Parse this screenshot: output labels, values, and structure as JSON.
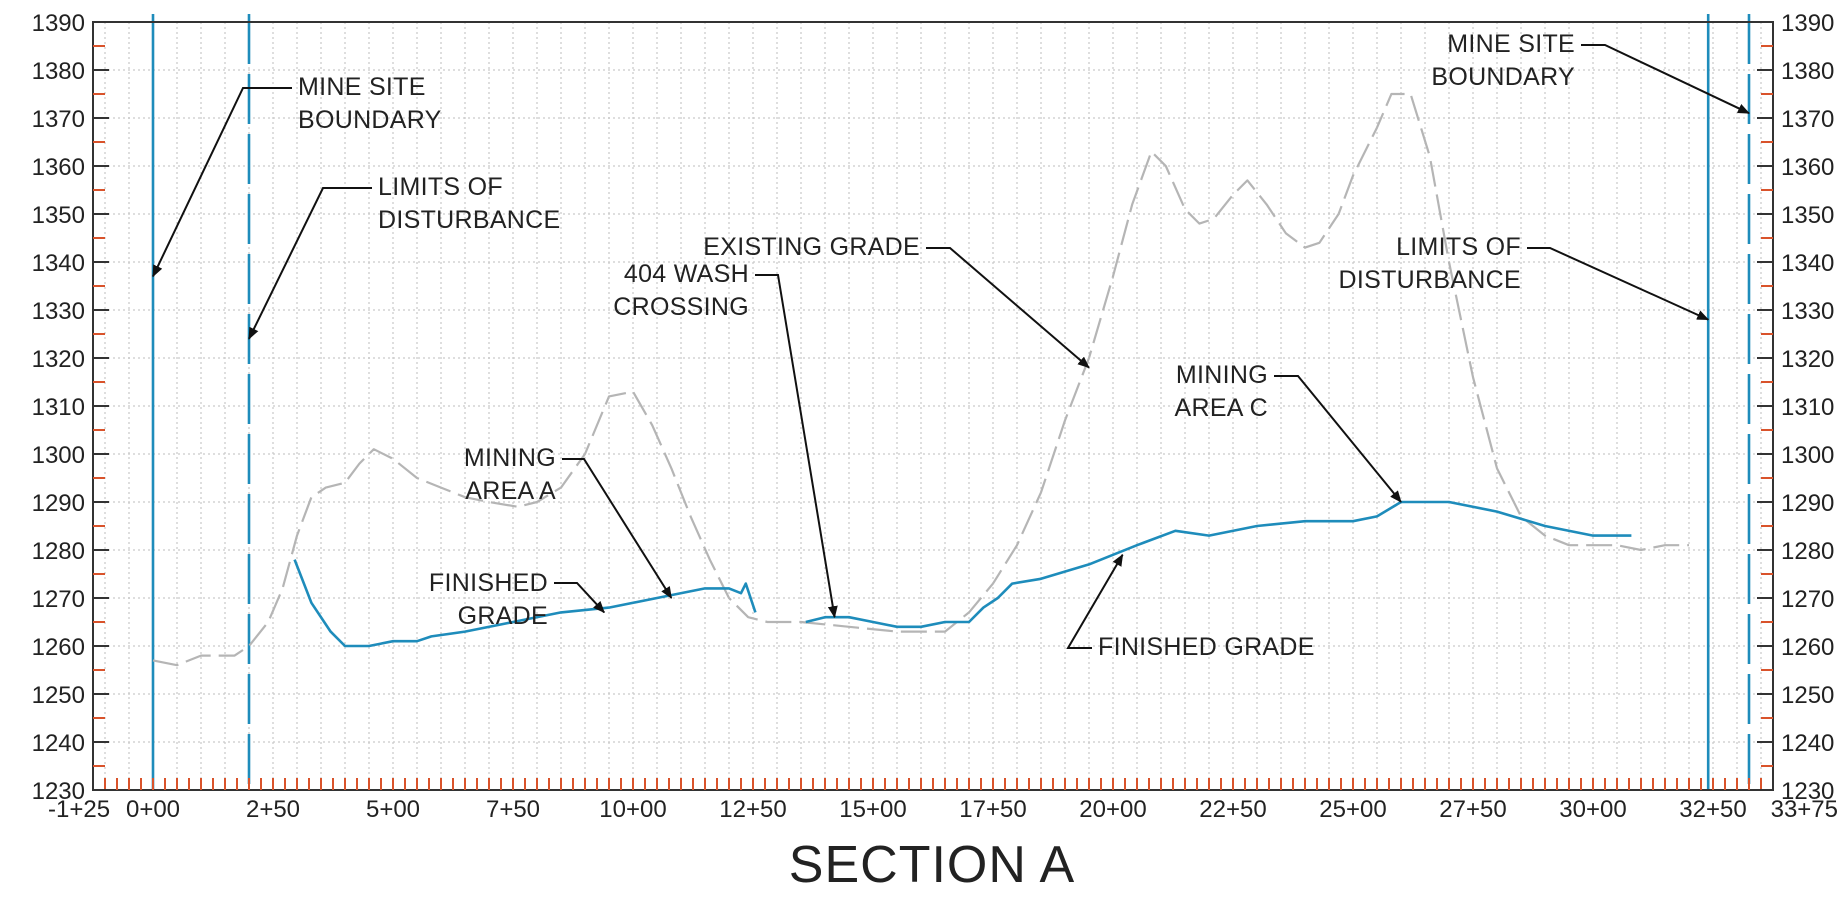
{
  "chart_data": {
    "type": "line",
    "title": "SECTION A",
    "xlabel": "",
    "ylabel": "",
    "xlim": [
      -125,
      3375
    ],
    "ylim": [
      1230,
      1390
    ],
    "grid": true,
    "x_tick_values": [
      -125,
      0,
      250,
      500,
      750,
      1000,
      1250,
      1500,
      1750,
      2000,
      2250,
      2500,
      2750,
      3000,
      3250,
      3375
    ],
    "x_tick_labels": [
      "-1+25",
      "0+00",
      "2+50",
      "5+00",
      "7+50",
      "10+00",
      "12+50",
      "15+00",
      "17+50",
      "20+00",
      "22+50",
      "25+00",
      "27+50",
      "30+00",
      "32+50",
      "33+75"
    ],
    "y_ticks": [
      1230,
      1240,
      1250,
      1260,
      1270,
      1280,
      1290,
      1300,
      1310,
      1320,
      1330,
      1340,
      1350,
      1360,
      1370,
      1380,
      1390
    ],
    "series": [
      {
        "name": "EXISTING GRADE",
        "color": "#b5b5b5",
        "style": "dashed",
        "points": [
          [
            0,
            1257
          ],
          [
            50,
            1256
          ],
          [
            100,
            1258
          ],
          [
            170,
            1258
          ],
          [
            200,
            1260
          ],
          [
            240,
            1265
          ],
          [
            270,
            1272
          ],
          [
            300,
            1283
          ],
          [
            330,
            1291
          ],
          [
            360,
            1293
          ],
          [
            400,
            1294
          ],
          [
            430,
            1298
          ],
          [
            460,
            1301
          ],
          [
            500,
            1299
          ],
          [
            550,
            1295
          ],
          [
            600,
            1293
          ],
          [
            650,
            1291
          ],
          [
            700,
            1290
          ],
          [
            760,
            1289
          ],
          [
            800,
            1290
          ],
          [
            850,
            1293
          ],
          [
            900,
            1300
          ],
          [
            950,
            1312
          ],
          [
            1000,
            1313
          ],
          [
            1040,
            1306
          ],
          [
            1080,
            1297
          ],
          [
            1120,
            1287
          ],
          [
            1160,
            1278
          ],
          [
            1200,
            1270
          ],
          [
            1240,
            1266
          ],
          [
            1280,
            1265
          ],
          [
            1350,
            1265
          ],
          [
            1450,
            1264
          ],
          [
            1550,
            1263
          ],
          [
            1650,
            1263
          ],
          [
            1700,
            1267
          ],
          [
            1750,
            1273
          ],
          [
            1800,
            1281
          ],
          [
            1850,
            1292
          ],
          [
            1900,
            1307
          ],
          [
            1950,
            1320
          ],
          [
            2000,
            1337
          ],
          [
            2040,
            1352
          ],
          [
            2080,
            1363
          ],
          [
            2110,
            1360
          ],
          [
            2150,
            1351
          ],
          [
            2180,
            1348
          ],
          [
            2210,
            1349
          ],
          [
            2250,
            1354
          ],
          [
            2280,
            1357
          ],
          [
            2320,
            1352
          ],
          [
            2360,
            1346
          ],
          [
            2400,
            1343
          ],
          [
            2430,
            1344
          ],
          [
            2470,
            1350
          ],
          [
            2500,
            1358
          ],
          [
            2550,
            1368
          ],
          [
            2580,
            1375
          ],
          [
            2620,
            1375
          ],
          [
            2660,
            1362
          ],
          [
            2700,
            1340
          ],
          [
            2750,
            1316
          ],
          [
            2800,
            1297
          ],
          [
            2850,
            1287
          ],
          [
            2900,
            1283
          ],
          [
            2950,
            1281
          ],
          [
            3000,
            1281
          ],
          [
            3050,
            1281
          ],
          [
            3100,
            1280
          ],
          [
            3150,
            1281
          ],
          [
            3200,
            1281
          ]
        ]
      },
      {
        "name": "FINISHED GRADE",
        "color": "#1e8cbb",
        "style": "solid",
        "segments": [
          [
            [
              295,
              1278
            ],
            [
              330,
              1269
            ],
            [
              370,
              1263
            ],
            [
              400,
              1260
            ],
            [
              450,
              1260
            ],
            [
              500,
              1261
            ],
            [
              550,
              1261
            ],
            [
              580,
              1262
            ],
            [
              650,
              1263
            ],
            [
              750,
              1265
            ],
            [
              850,
              1267
            ],
            [
              950,
              1268
            ],
            [
              1050,
              1270
            ],
            [
              1150,
              1272
            ],
            [
              1200,
              1272
            ],
            [
              1225,
              1271
            ],
            [
              1235,
              1273
            ],
            [
              1255,
              1267
            ]
          ],
          [
            [
              1360,
              1265
            ],
            [
              1400,
              1266
            ],
            [
              1450,
              1266
            ],
            [
              1500,
              1265
            ],
            [
              1550,
              1264
            ],
            [
              1600,
              1264
            ],
            [
              1650,
              1265
            ],
            [
              1700,
              1265
            ],
            [
              1730,
              1268
            ],
            [
              1760,
              1270
            ],
            [
              1790,
              1273
            ],
            [
              1850,
              1274
            ],
            [
              1950,
              1277
            ],
            [
              2050,
              1281
            ],
            [
              2130,
              1284
            ],
            [
              2200,
              1283
            ],
            [
              2300,
              1285
            ],
            [
              2400,
              1286
            ],
            [
              2500,
              1286
            ],
            [
              2550,
              1287
            ],
            [
              2600,
              1290
            ],
            [
              2650,
              1290
            ],
            [
              2700,
              1290
            ],
            [
              2800,
              1288
            ],
            [
              2900,
              1285
            ],
            [
              3000,
              1283
            ],
            [
              3050,
              1283
            ],
            [
              3080,
              1283
            ]
          ]
        ]
      }
    ],
    "boundary_lines": [
      {
        "x": 0,
        "color": "#1e8cbb",
        "style": "solid"
      },
      {
        "x": 200,
        "color": "#1e8cbb",
        "style": "dashed"
      },
      {
        "x": 3240,
        "color": "#1e8cbb",
        "style": "solid"
      },
      {
        "x": 3325,
        "color": "#1e8cbb",
        "style": "dashed"
      }
    ],
    "annotations": [
      {
        "lines": [
          "MINE SITE",
          "BOUNDARY"
        ],
        "target_x": 0,
        "target_y": 1337
      },
      {
        "lines": [
          "LIMITS OF",
          "DISTURBANCE"
        ],
        "target_x": 200,
        "target_y": 1324
      },
      {
        "lines": [
          "MINING",
          "AREA A"
        ],
        "target_x": 1080,
        "target_y": 1270
      },
      {
        "lines": [
          "FINISHED",
          "GRADE"
        ],
        "target_x": 940,
        "target_y": 1267
      },
      {
        "lines": [
          "404 WASH",
          "CROSSING"
        ],
        "target_x": 1420,
        "target_y": 1266
      },
      {
        "lines": [
          "EXISTING GRADE"
        ],
        "target_x": 1950,
        "target_y": 1318
      },
      {
        "lines": [
          "MINING",
          "AREA C"
        ],
        "target_x": 2600,
        "target_y": 1290
      },
      {
        "lines": [
          "FINISHED GRADE"
        ],
        "target_x": 2020,
        "target_y": 1279
      },
      {
        "lines": [
          "LIMITS OF",
          "DISTURBANCE"
        ],
        "target_x": 3240,
        "target_y": 1328
      },
      {
        "lines": [
          "MINE SITE",
          "BOUNDARY"
        ],
        "target_x": 3325,
        "target_y": 1371
      }
    ]
  }
}
